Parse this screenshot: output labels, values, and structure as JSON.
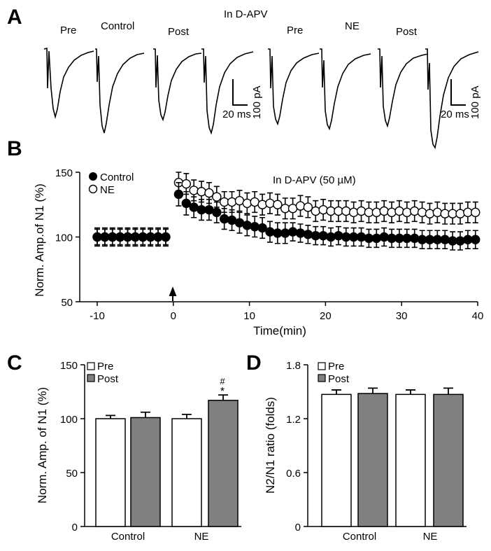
{
  "figure": {
    "panel_labels": [
      "A",
      "B",
      "C",
      "D"
    ]
  },
  "panel_a": {
    "group_label": "In D-APV",
    "trace_labels": [
      "Pre",
      "Control",
      "Post",
      "Pre",
      "NE",
      "Post"
    ],
    "scale_time": "20 ms",
    "scale_amp": "100 pA"
  },
  "chart_data": [
    {
      "panel": "B",
      "type": "scatter",
      "title": "",
      "annotation": "In D-APV (50 µM)",
      "xlabel": "Time(min)",
      "ylabel": "Norm. Amp.of N1 (%)",
      "xlim": [
        -10,
        40
      ],
      "ylim": [
        50,
        150
      ],
      "xticks": [
        -10,
        0,
        10,
        20,
        30,
        40
      ],
      "yticks": [
        50,
        100,
        150
      ],
      "legend": [
        "Control",
        "NE"
      ],
      "legend_position": "top-left",
      "arrow_at_x": 0,
      "series": [
        {
          "name": "Control",
          "marker": "filled-circle",
          "x": [
            -10,
            -9,
            -8,
            -7,
            -6,
            -5,
            -4,
            -3,
            -2,
            -1,
            0.7,
            1.7,
            2.7,
            3.7,
            4.7,
            5.7,
            6.7,
            7.7,
            8.7,
            9.7,
            10.7,
            11.7,
            12.7,
            13.7,
            14.7,
            15.7,
            16.7,
            17.7,
            18.7,
            19.7,
            20.7,
            21.7,
            22.7,
            23.7,
            24.7,
            25.7,
            26.7,
            27.7,
            28.7,
            29.7,
            30.7,
            31.7,
            32.7,
            33.7,
            34.7,
            35.7,
            36.7,
            37.7,
            38.7,
            39.7
          ],
          "y": [
            100,
            100,
            100,
            100,
            100,
            100,
            100,
            100,
            100,
            100,
            133,
            126,
            123,
            121,
            121,
            119,
            114,
            113,
            111,
            109,
            108,
            107,
            104,
            103,
            103,
            104,
            103,
            102,
            101,
            101,
            100,
            101,
            100,
            100,
            100,
            99,
            99,
            100,
            99,
            99,
            99,
            99,
            98,
            98,
            98,
            98,
            97,
            97,
            98,
            98
          ],
          "err": [
            6,
            6,
            6,
            6,
            6,
            6,
            6,
            6,
            6,
            6,
            9,
            9,
            8,
            8,
            8,
            8,
            8,
            8,
            8,
            8,
            8,
            8,
            8,
            8,
            8,
            7,
            7,
            7,
            7,
            7,
            7,
            7,
            7,
            7,
            7,
            7,
            7,
            7,
            7,
            7,
            7,
            7,
            7,
            7,
            7,
            7,
            7,
            7,
            7,
            7
          ]
        },
        {
          "name": "NE",
          "marker": "open-circle",
          "x": [
            -10,
            -9,
            -8,
            -7,
            -6,
            -5,
            -4,
            -3,
            -2,
            -1,
            0.7,
            1.7,
            2.7,
            3.7,
            4.7,
            5.7,
            6.7,
            7.7,
            8.7,
            9.7,
            10.7,
            11.7,
            12.7,
            13.7,
            14.7,
            15.7,
            16.7,
            17.7,
            18.7,
            19.7,
            20.7,
            21.7,
            22.7,
            23.7,
            24.7,
            25.7,
            26.7,
            27.7,
            28.7,
            29.7,
            30.7,
            31.7,
            32.7,
            33.7,
            34.7,
            35.7,
            36.7,
            37.7,
            38.7,
            39.7
          ],
          "y": [
            100,
            100,
            100,
            100,
            100,
            100,
            100,
            100,
            100,
            100,
            142,
            141,
            136,
            135,
            134,
            131,
            127,
            127,
            128,
            126,
            127,
            125,
            126,
            125,
            122,
            122,
            124,
            123,
            120,
            121,
            120,
            120,
            120,
            119,
            120,
            119,
            119,
            120,
            119,
            120,
            119,
            120,
            119,
            118,
            119,
            118,
            118,
            118,
            119,
            119
          ],
          "err": [
            7,
            7,
            7,
            7,
            7,
            7,
            7,
            7,
            7,
            7,
            8,
            8,
            8,
            8,
            8,
            8,
            8,
            8,
            8,
            8,
            8,
            8,
            8,
            8,
            8,
            8,
            8,
            8,
            8,
            8,
            8,
            8,
            8,
            8,
            8,
            8,
            8,
            8,
            8,
            8,
            8,
            8,
            8,
            8,
            8,
            8,
            8,
            8,
            8,
            8
          ]
        }
      ]
    },
    {
      "panel": "C",
      "type": "bar",
      "title": "",
      "xlabel": "",
      "ylabel": "Norm.  Amp.  of N1  (%)",
      "ylim": [
        0,
        150
      ],
      "yticks": [
        0,
        50,
        100,
        150
      ],
      "categories": [
        "Control",
        "NE"
      ],
      "legend": [
        "Pre",
        "Post"
      ],
      "legend_position": "top-left",
      "series": [
        {
          "name": "Pre",
          "color": "#ffffff",
          "values": [
            100,
            100
          ],
          "err": [
            3,
            4
          ]
        },
        {
          "name": "Post",
          "color": "#808080",
          "values": [
            101,
            117
          ],
          "err": [
            5,
            5
          ]
        }
      ],
      "annotations": [
        "#",
        "*"
      ]
    },
    {
      "panel": "D",
      "type": "bar",
      "title": "",
      "xlabel": "",
      "ylabel": "N2/N1 ratio (folds)",
      "ylim": [
        0,
        1.8
      ],
      "yticks": [
        0,
        0.6,
        1.2,
        1.8
      ],
      "categories": [
        "Control",
        "NE"
      ],
      "legend": [
        "Pre",
        "Post"
      ],
      "legend_position": "top-left",
      "series": [
        {
          "name": "Pre",
          "color": "#ffffff",
          "values": [
            1.47,
            1.47
          ],
          "err": [
            0.05,
            0.05
          ]
        },
        {
          "name": "Post",
          "color": "#808080",
          "values": [
            1.48,
            1.47
          ],
          "err": [
            0.06,
            0.07
          ]
        }
      ]
    }
  ]
}
